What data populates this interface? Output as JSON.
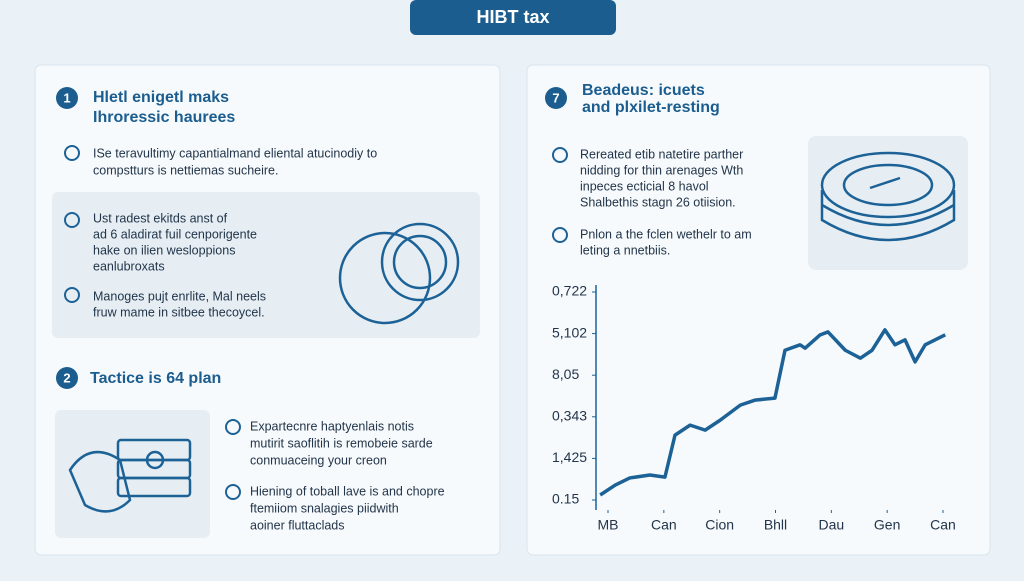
{
  "header": {
    "title": "HIBT tax"
  },
  "left_panel": {
    "section1": {
      "number": "1",
      "heading": [
        "Hletl enigetl maks",
        "Ihroressic haurees"
      ],
      "intro": [
        "ISe teravultimy capantialmand eliental atucinodiy to",
        "compstturs is nettiemas sucheire."
      ],
      "items": [
        [
          "Ust radest ekitds anst of",
          "ad 6 aladirat fuil cenporigente",
          "hake on ilien wesloppions",
          "eanlubroxats"
        ],
        [
          "Manoges pujt enrlite, Mal neels",
          "fruw mame in sitbee thecoycel."
        ]
      ]
    },
    "section2": {
      "number": "2",
      "heading": "Tactice is 64 plan",
      "items": [
        [
          "Expartecnre haptyenlais notis",
          "mutirit saoflitih is remobeie sarde",
          "conmuaceing your creon"
        ],
        [
          "Hiening of toball lave is and chopre",
          "ftemiiom snalagies piidwith",
          "aoiner fluttaclads"
        ]
      ]
    }
  },
  "right_panel": {
    "number": "7",
    "heading": [
      "Beadeus: icuets",
      "and plxilet-resting"
    ],
    "items": [
      [
        "Rereated etib natetire parther",
        "nidding for thin arenages Wth",
        "inpeces ecticial 8 havol",
        "Shalbethis stagn 26 otiision."
      ],
      [
        "Pnlon a the fclen wethelr to am",
        "leting a nnetbiis."
      ]
    ],
    "chart_data": {
      "type": "line",
      "color": "#1d6296",
      "x": [
        -0.14,
        0.13,
        0.39,
        0.75,
        1.02,
        1.2,
        1.47,
        1.74,
        2.01,
        2.37,
        2.63,
        2.99,
        3.17,
        3.44,
        3.53,
        3.8,
        3.94,
        4.25,
        4.52,
        4.73,
        4.96,
        5.14,
        5.32,
        5.5,
        5.68,
        5.86,
        6.04
      ],
      "values": [
        0.12,
        0.36,
        0.53,
        0.6,
        0.55,
        1.56,
        1.8,
        1.68,
        1.92,
        2.28,
        2.4,
        2.45,
        3.6,
        3.73,
        3.65,
        3.97,
        4.04,
        3.6,
        3.41,
        3.6,
        4.09,
        3.73,
        3.85,
        3.32,
        3.73,
        3.85,
        3.97
      ],
      "xlim": [
        0,
        6
      ],
      "ylim": [
        0,
        5
      ],
      "xticks": [
        {
          "value": 0,
          "label": "MB"
        },
        {
          "value": 1,
          "label": "Can"
        },
        {
          "value": 2,
          "label": "Cion"
        },
        {
          "value": 3,
          "label": "Bhll"
        },
        {
          "value": 4,
          "label": "Dau"
        },
        {
          "value": 5,
          "label": "Gen"
        },
        {
          "value": 6,
          "label": "Can"
        }
      ],
      "yticks": [
        {
          "value": 0,
          "label": "0.15"
        },
        {
          "value": 1,
          "label": "1,425"
        },
        {
          "value": 2,
          "label": "0,343"
        },
        {
          "value": 3,
          "label": "8,05"
        },
        {
          "value": 4,
          "label": "5,102"
        },
        {
          "value": 5,
          "label": "0,722"
        }
      ]
    }
  }
}
